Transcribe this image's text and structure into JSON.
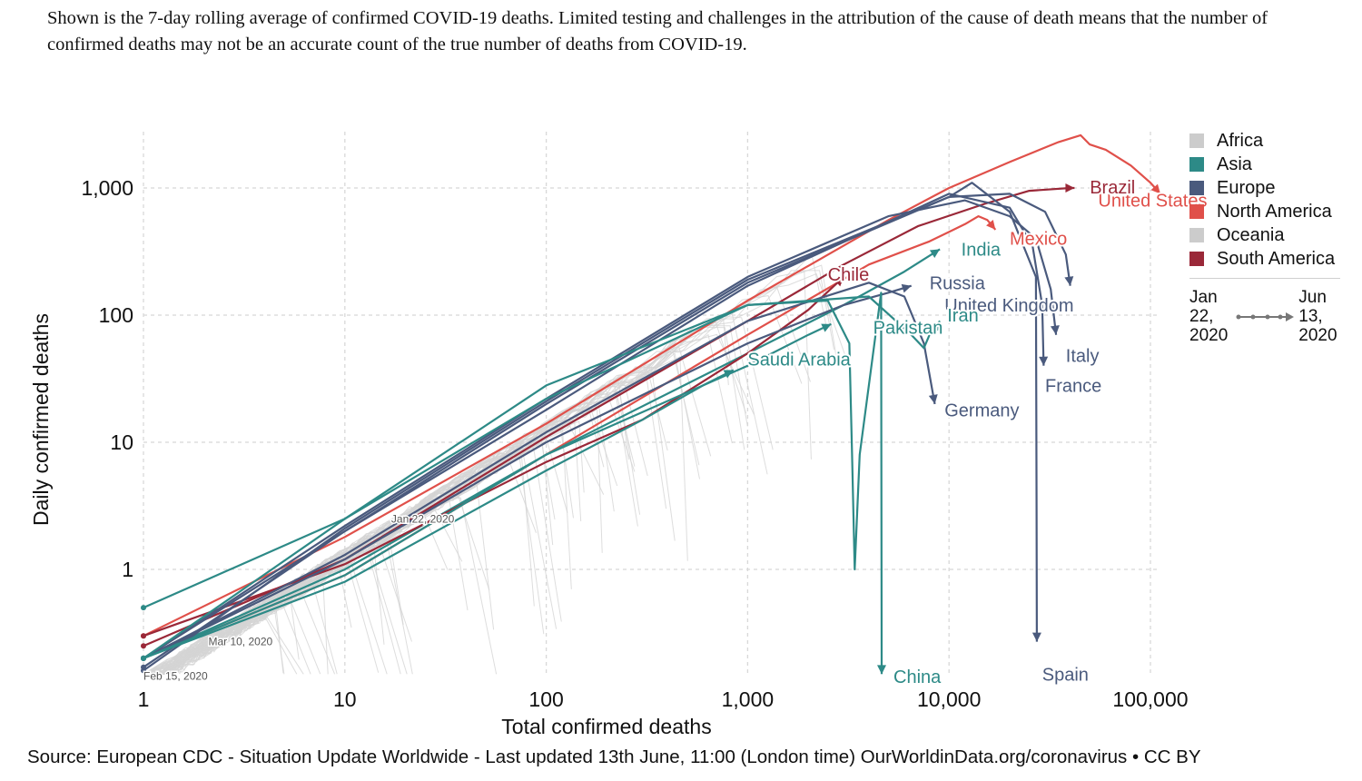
{
  "subtitle": "Shown is the 7-day rolling average of confirmed COVID-19 deaths. Limited testing and challenges in the attribution of the cause of death means that the number of confirmed deaths may not be an accurate count of the true number of deaths from COVID-19.",
  "source": "Source: European CDC - Situation Update Worldwide - Last updated 13th June, 11:00 (London time) OurWorldinData.org/coronavirus • CC BY",
  "legend": {
    "items": [
      {
        "label": "Africa",
        "color": "#cccccc"
      },
      {
        "label": "Asia",
        "color": "#2d8a87"
      },
      {
        "label": "Europe",
        "color": "#4a5a7d"
      },
      {
        "label": "North America",
        "color": "#e0504a"
      },
      {
        "label": "Oceania",
        "color": "#cccccc"
      },
      {
        "label": "South America",
        "color": "#9a2838"
      }
    ],
    "time_from": "Jan\n22,\n2020",
    "time_to": "Jun\n13,\n2020"
  },
  "chart_data": {
    "type": "line",
    "title": "",
    "xlabel": "Total confirmed deaths",
    "ylabel": "Daily confirmed deaths",
    "xscale": "log",
    "yscale": "log",
    "xlim": [
      1,
      120000
    ],
    "ylim": [
      0.143,
      2800
    ],
    "x_ticks": [
      {
        "v": 1,
        "label": "1"
      },
      {
        "v": 10,
        "label": "10"
      },
      {
        "v": 100,
        "label": "100"
      },
      {
        "v": 1000,
        "label": "1,000"
      },
      {
        "v": 10000,
        "label": "10,000"
      },
      {
        "v": 100000,
        "label": "100,000"
      }
    ],
    "y_ticks": [
      {
        "v": 1,
        "label": "1"
      },
      {
        "v": 10,
        "label": "10"
      },
      {
        "v": 100,
        "label": "100"
      },
      {
        "v": 1000,
        "label": "1,000"
      }
    ],
    "grid": true,
    "legend_position": "right",
    "date_annotations": [
      {
        "text": "Jan 22, 2020",
        "x": 17,
        "y": 2.5
      },
      {
        "text": "Mar 10, 2020",
        "x": 2.1,
        "y": 0.27
      },
      {
        "text": "Feb 15, 2020",
        "x": 1.0,
        "y": 0.145
      }
    ],
    "series": [
      {
        "name": "United States",
        "region": "North America",
        "color": "#e0504a",
        "label_at": [
          55000,
          800
        ],
        "points": [
          [
            1,
            0.3
          ],
          [
            10,
            1.8
          ],
          [
            100,
            14
          ],
          [
            1000,
            130
          ],
          [
            5000,
            560
          ],
          [
            10000,
            1000
          ],
          [
            20000,
            1600
          ],
          [
            35000,
            2300
          ],
          [
            45000,
            2600
          ],
          [
            50000,
            2200
          ],
          [
            60000,
            2000
          ],
          [
            80000,
            1500
          ],
          [
            100000,
            1100
          ],
          [
            112000,
            900
          ]
        ]
      },
      {
        "name": "Brazil",
        "region": "South America",
        "color": "#9a2838",
        "label_at": [
          50000,
          1020
        ],
        "points": [
          [
            1,
            0.25
          ],
          [
            10,
            1.2
          ],
          [
            100,
            11
          ],
          [
            1000,
            90
          ],
          [
            3000,
            250
          ],
          [
            7000,
            500
          ],
          [
            15000,
            750
          ],
          [
            25000,
            950
          ],
          [
            40000,
            1000
          ],
          [
            42000,
            1000
          ]
        ]
      },
      {
        "name": "Mexico",
        "region": "North America",
        "color": "#e0504a",
        "label_at": [
          20000,
          400
        ],
        "points": [
          [
            1,
            0.2
          ],
          [
            10,
            0.9
          ],
          [
            100,
            8
          ],
          [
            1000,
            70
          ],
          [
            4000,
            250
          ],
          [
            8000,
            380
          ],
          [
            12000,
            520
          ],
          [
            14000,
            600
          ],
          [
            15500,
            560
          ],
          [
            17000,
            470
          ]
        ]
      },
      {
        "name": "India",
        "region": "Asia",
        "color": "#2d8a87",
        "label_at": [
          11500,
          330
        ],
        "points": [
          [
            1,
            0.2
          ],
          [
            10,
            1
          ],
          [
            100,
            8
          ],
          [
            1000,
            50
          ],
          [
            3000,
            120
          ],
          [
            6000,
            220
          ],
          [
            9000,
            330
          ]
        ]
      },
      {
        "name": "Chile",
        "region": "South America",
        "color": "#9a2838",
        "label_at": [
          2500,
          210
        ],
        "points": [
          [
            1,
            0.3
          ],
          [
            10,
            1.1
          ],
          [
            100,
            7
          ],
          [
            300,
            15
          ],
          [
            1000,
            50
          ],
          [
            2000,
            110
          ],
          [
            3000,
            200
          ]
        ]
      },
      {
        "name": "Russia",
        "region": "Europe",
        "color": "#4a5a7d",
        "label_at": [
          8000,
          180
        ],
        "points": [
          [
            1,
            0.2
          ],
          [
            10,
            1.2
          ],
          [
            100,
            10
          ],
          [
            1000,
            60
          ],
          [
            3000,
            120
          ],
          [
            5000,
            150
          ],
          [
            6500,
            170
          ]
        ]
      },
      {
        "name": "United Kingdom",
        "region": "Europe",
        "color": "#4a5a7d",
        "label_at": [
          9500,
          120
        ],
        "points": [
          [
            1,
            0.2
          ],
          [
            10,
            2
          ],
          [
            100,
            20
          ],
          [
            1000,
            180
          ],
          [
            10000,
            850
          ],
          [
            20000,
            900
          ],
          [
            30000,
            650
          ],
          [
            38000,
            300
          ],
          [
            40000,
            170
          ]
        ]
      },
      {
        "name": "Italy",
        "region": "Europe",
        "color": "#4a5a7d",
        "label_at": [
          38000,
          48
        ],
        "points": [
          [
            1,
            0.2
          ],
          [
            10,
            2.2
          ],
          [
            100,
            22
          ],
          [
            1000,
            200
          ],
          [
            5000,
            600
          ],
          [
            12000,
            800
          ],
          [
            20000,
            600
          ],
          [
            27000,
            400
          ],
          [
            32000,
            160
          ],
          [
            34000,
            70
          ]
        ]
      },
      {
        "name": "France",
        "region": "Europe",
        "color": "#4a5a7d",
        "label_at": [
          30000,
          28
        ],
        "points": [
          [
            1,
            0.17
          ],
          [
            10,
            2
          ],
          [
            100,
            18
          ],
          [
            1000,
            170
          ],
          [
            10000,
            900
          ],
          [
            20000,
            700
          ],
          [
            26000,
            350
          ],
          [
            29000,
            120
          ],
          [
            29500,
            40
          ]
        ]
      },
      {
        "name": "Spain",
        "region": "Europe",
        "color": "#4a5a7d",
        "label_at": [
          29000,
          0.15
        ],
        "points": [
          [
            1,
            0.16
          ],
          [
            10,
            2.1
          ],
          [
            100,
            21
          ],
          [
            1000,
            190
          ],
          [
            10000,
            850
          ],
          [
            13000,
            1100
          ],
          [
            20000,
            650
          ],
          [
            27000,
            200
          ],
          [
            27200,
            3
          ],
          [
            27300,
            0.27
          ]
        ]
      },
      {
        "name": "Germany",
        "region": "Europe",
        "color": "#4a5a7d",
        "label_at": [
          9500,
          18
        ],
        "points": [
          [
            1,
            0.2
          ],
          [
            10,
            1.3
          ],
          [
            100,
            12
          ],
          [
            1000,
            90
          ],
          [
            4000,
            180
          ],
          [
            6000,
            140
          ],
          [
            7500,
            60
          ],
          [
            8500,
            20
          ]
        ]
      },
      {
        "name": "Iran",
        "region": "Asia",
        "color": "#2d8a87",
        "label_at": [
          9800,
          100
        ],
        "points": [
          [
            1,
            0.5
          ],
          [
            10,
            2.5
          ],
          [
            100,
            22
          ],
          [
            1000,
            120
          ],
          [
            4000,
            140
          ],
          [
            6500,
            70
          ],
          [
            7500,
            55
          ],
          [
            8000,
            70
          ],
          [
            9000,
            90
          ]
        ]
      },
      {
        "name": "Pakistan",
        "region": "Asia",
        "color": "#2d8a87",
        "label_at": [
          4200,
          80
        ],
        "points": [
          [
            1,
            0.2
          ],
          [
            10,
            0.9
          ],
          [
            100,
            8
          ],
          [
            1000,
            40
          ],
          [
            2000,
            70
          ],
          [
            2600,
            85
          ]
        ]
      },
      {
        "name": "Saudi Arabia",
        "region": "Asia",
        "color": "#2d8a87",
        "label_at": [
          1000,
          45
        ],
        "points": [
          [
            1,
            0.2
          ],
          [
            10,
            0.8
          ],
          [
            100,
            6
          ],
          [
            300,
            15
          ],
          [
            600,
            28
          ],
          [
            850,
            37
          ]
        ]
      },
      {
        "name": "China",
        "region": "Asia",
        "color": "#2d8a87",
        "label_at": [
          5300,
          0.142
        ],
        "points": [
          [
            1,
            0.2
          ],
          [
            10,
            2.5
          ],
          [
            100,
            28
          ],
          [
            1000,
            120
          ],
          [
            2500,
            130
          ],
          [
            3200,
            60
          ],
          [
            3300,
            8
          ],
          [
            3400,
            1
          ],
          [
            3600,
            8
          ],
          [
            4600,
            150
          ],
          [
            4630,
            0.15
          ]
        ]
      }
    ],
    "background_series_note": "Many grey lines for Africa/Oceania and other countries"
  }
}
